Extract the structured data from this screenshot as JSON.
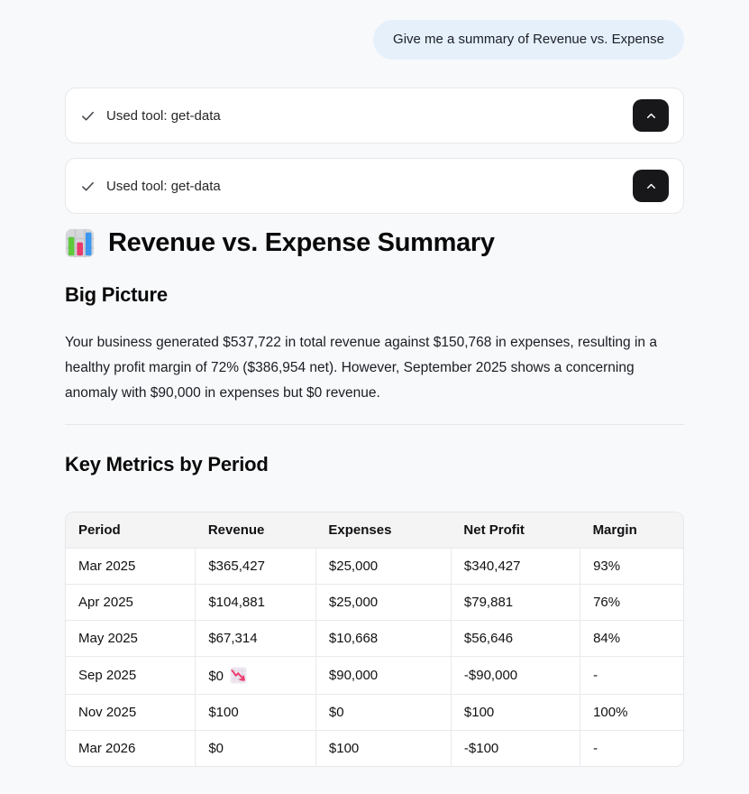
{
  "chat": {
    "user_message": "Give me a summary of Revenue vs. Expense"
  },
  "tool_cards": [
    {
      "icon": "check-icon",
      "label": "Used tool: get-data",
      "button_icon": "chevron-up-icon"
    },
    {
      "icon": "check-icon",
      "label": "Used tool: get-data",
      "button_icon": "chevron-up-icon"
    }
  ],
  "response": {
    "title_icon": "bar-chart-emoji",
    "title": "Revenue vs. Expense Summary",
    "section1_heading": "Big Picture",
    "paragraph": "Your business generated $537,722 in total revenue against $150,768 in expenses, resulting in a healthy profit margin of 72% ($386,954 net). However, September 2025 shows a concerning anomaly with $90,000 in expenses but $0 revenue.",
    "section2_heading": "Key Metrics by Period",
    "table": {
      "headers": [
        "Period",
        "Revenue",
        "Expenses",
        "Net Profit",
        "Margin"
      ],
      "rows": [
        {
          "cells": [
            "Mar 2025",
            "$365,427",
            "$25,000",
            "$340,427",
            "93%"
          ]
        },
        {
          "cells": [
            "Apr 2025",
            "$104,881",
            "$25,000",
            "$79,881",
            "76%"
          ]
        },
        {
          "cells": [
            "May 2025",
            "$67,314",
            "$10,668",
            "$56,646",
            "84%"
          ]
        },
        {
          "cells": [
            "Sep 2025",
            "$0",
            "$90,000",
            "-$90,000",
            "-"
          ],
          "cell_icons": {
            "1": "chart-decreasing-emoji"
          }
        },
        {
          "cells": [
            "Nov 2025",
            "$100",
            "$0",
            "$100",
            "100%"
          ]
        },
        {
          "cells": [
            "Mar 2026",
            "$0",
            "$100",
            "-$100",
            "-"
          ]
        }
      ]
    }
  },
  "colors": {
    "page_background": "#f8f9fb",
    "user_bubble_background": "#e5f0fb",
    "card_border": "#e7e8ea",
    "collapse_button_background": "#18181b",
    "table_header_background": "#f4f4f5",
    "table_border": "#e8e9eb"
  }
}
